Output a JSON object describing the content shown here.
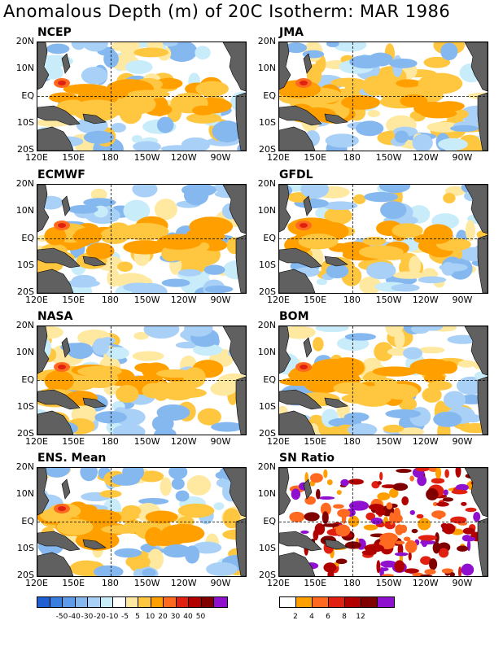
{
  "title": "Anomalous Depth (m) of 20C Isotherm: MAR 1986",
  "panels": [
    {
      "id": "ncep",
      "title": "NCEP"
    },
    {
      "id": "jma",
      "title": "JMA"
    },
    {
      "id": "ecmwf",
      "title": "ECMWF"
    },
    {
      "id": "gfdl",
      "title": "GFDL"
    },
    {
      "id": "nasa",
      "title": "NASA"
    },
    {
      "id": "bom",
      "title": "BOM"
    },
    {
      "id": "ens",
      "title": "ENS. Mean"
    },
    {
      "id": "sn",
      "title": "SN Ratio"
    }
  ],
  "axes": {
    "y_labels": [
      "20N",
      "10N",
      "EQ",
      "10S",
      "20S"
    ],
    "x_labels": [
      "120E",
      "150E",
      "180",
      "150W",
      "120W",
      "90W"
    ]
  },
  "colorbar_anomaly": {
    "labels": [
      "-50",
      "-40",
      "-30",
      "-20",
      "-10",
      "-5",
      "5",
      "10",
      "20",
      "30",
      "40",
      "50"
    ],
    "colors": [
      "#1e5fd1",
      "#3a7fe0",
      "#5e9bea",
      "#86b8f0",
      "#a9d0f6",
      "#c8ecfa",
      "#ffffff",
      "#ffe9a0",
      "#ffc640",
      "#ffa000",
      "#ff6a20",
      "#e02010",
      "#b00000",
      "#800000",
      "#9010d0"
    ]
  },
  "colorbar_sn": {
    "labels": [
      "2",
      "4",
      "6",
      "8",
      "12"
    ],
    "colors": [
      "#ffffff",
      "#ffa000",
      "#ff6a20",
      "#e02010",
      "#b00000",
      "#800000",
      "#9010d0"
    ]
  },
  "land_color": "#606060"
}
